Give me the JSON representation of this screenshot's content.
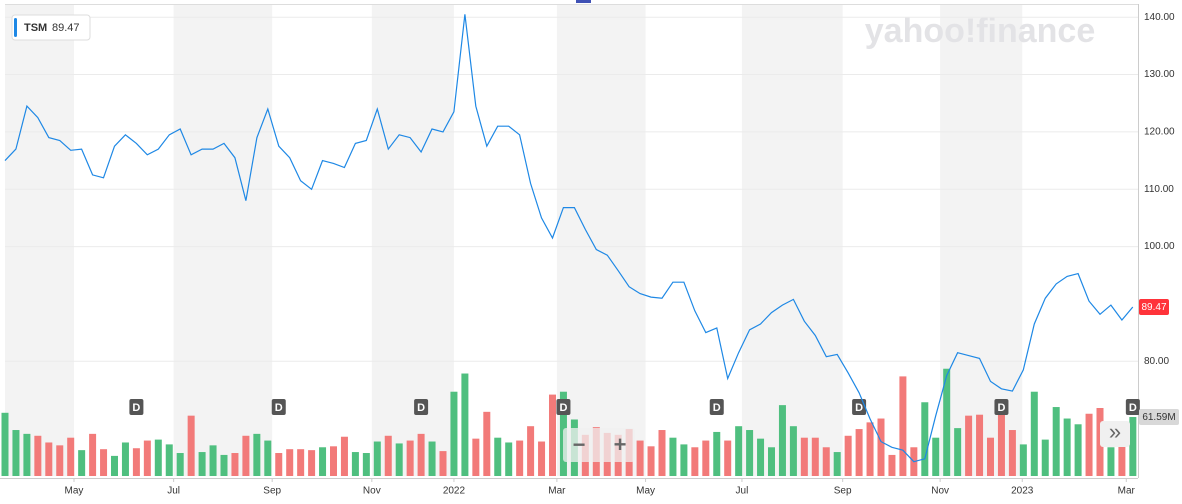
{
  "chart_data": {
    "type": "line",
    "watermark": "yahoo!finance",
    "categories": [
      null,
      null,
      null,
      null,
      null,
      null,
      null,
      null,
      null,
      null,
      null,
      null,
      null,
      null,
      null,
      null,
      null,
      null,
      null,
      null,
      null,
      null,
      null,
      null,
      null,
      null,
      null,
      null,
      null,
      null,
      null,
      null,
      null,
      null,
      null,
      null,
      null,
      null,
      null,
      null,
      null,
      null,
      null,
      null,
      null,
      null,
      null,
      null,
      null,
      null,
      null,
      null,
      null,
      null,
      null,
      null,
      null,
      null,
      null,
      null,
      null,
      null,
      null,
      null,
      null,
      null,
      null,
      null,
      null,
      null,
      null,
      null,
      null,
      null,
      null,
      null,
      null,
      null,
      null,
      null,
      null,
      null,
      null,
      null,
      null,
      null,
      null,
      null,
      null,
      null,
      null,
      null,
      null,
      null,
      null,
      null,
      null,
      null,
      null,
      null,
      null,
      null,
      null,
      null
    ],
    "series": [
      {
        "name": "TSM",
        "color": "#1e88e5",
        "values": [
          115,
          117,
          124.5,
          122.5,
          119,
          118.5,
          116.8,
          117,
          112.5,
          112,
          117.5,
          119.5,
          118,
          116,
          117,
          119.5,
          120.5,
          116,
          117,
          117,
          118,
          115.5,
          108,
          119,
          124,
          117.5,
          115.5,
          111.5,
          110,
          115,
          114.5,
          113.8,
          118,
          118.5,
          124,
          117,
          119.5,
          119,
          116.5,
          120.5,
          120,
          123.5,
          140.5,
          124.5,
          117.5,
          121,
          121,
          119.5,
          111,
          105,
          101.5,
          106.8,
          106.8,
          103,
          99.5,
          98.5,
          95.8,
          93,
          91.8,
          91.2,
          91,
          93.8,
          93.8,
          88.8,
          85,
          85.8,
          77,
          81.5,
          85.5,
          86.5,
          88.5,
          89.8,
          90.8,
          87,
          84.5,
          80.8,
          81.2,
          78,
          74.5,
          70,
          66,
          65,
          64.5,
          62.5,
          63,
          70.5,
          77.5,
          81.5,
          81,
          80.5,
          76.5,
          75.2,
          74.8,
          78.5,
          86.5,
          91,
          93.5,
          94.8,
          95.3,
          90.5,
          88.2,
          89.8,
          87.2,
          89.47
        ]
      },
      {
        "name": "Volume",
        "axis": "y2",
        "up_color": "#4fbf7f",
        "down_color": "#f27a79",
        "values": [
          66,
          48,
          44,
          42,
          35,
          32,
          40,
          27,
          44,
          28,
          21,
          35,
          29,
          37,
          38,
          33,
          24,
          63,
          25,
          32,
          22,
          24,
          42,
          44,
          37,
          24,
          28,
          28,
          27,
          30,
          31,
          41,
          25,
          24,
          36,
          42,
          34,
          37,
          44,
          36,
          26,
          88,
          107,
          39,
          67,
          40,
          35,
          37,
          52,
          36,
          85,
          88,
          59,
          43,
          51,
          45,
          43,
          49,
          37,
          31,
          48,
          40,
          33,
          30,
          37,
          46,
          37,
          52,
          48,
          39,
          30,
          74,
          52,
          40,
          40,
          30,
          25,
          42,
          49,
          56,
          60,
          22,
          104,
          30,
          77,
          40,
          112,
          50,
          63,
          64,
          40,
          70,
          48,
          33,
          88,
          38,
          72,
          60,
          54,
          65,
          71,
          30,
          35,
          61.59
        ],
        "last_label": "61.59M"
      }
    ],
    "ylim": [
      60,
      143
    ],
    "yticks": [
      {
        "value": 80,
        "label": "80.00"
      },
      {
        "value": 100,
        "label": "100.00"
      },
      {
        "value": 110,
        "label": "110.00"
      },
      {
        "value": 120,
        "label": "120.00"
      },
      {
        "value": 130,
        "label": "130.00"
      },
      {
        "value": 140,
        "label": "140.00"
      }
    ],
    "y2lim": [
      0,
      497
    ],
    "xticks": [
      {
        "value": 6.3,
        "label": "May"
      },
      {
        "value": 15.4,
        "label": "Jul"
      },
      {
        "value": 24.4,
        "label": "Sep"
      },
      {
        "value": 33.5,
        "label": "Nov"
      },
      {
        "value": 41,
        "label": "2022"
      },
      {
        "value": 50.4,
        "label": "Mar"
      },
      {
        "value": 58.5,
        "label": "May"
      },
      {
        "value": 67.3,
        "label": "Jul"
      },
      {
        "value": 76.5,
        "label": "Sep"
      },
      {
        "value": 85.4,
        "label": "Nov"
      },
      {
        "value": 92.9,
        "label": "2023"
      },
      {
        "value": 102.4,
        "label": "Mar"
      }
    ],
    "dividend_points": [
      12,
      25,
      38,
      51,
      65,
      78,
      91,
      103
    ],
    "dividend_label": "D",
    "grid": true,
    "controls": {
      "zoom_out": "−",
      "zoom_in": "+",
      "next": "»"
    }
  }
}
